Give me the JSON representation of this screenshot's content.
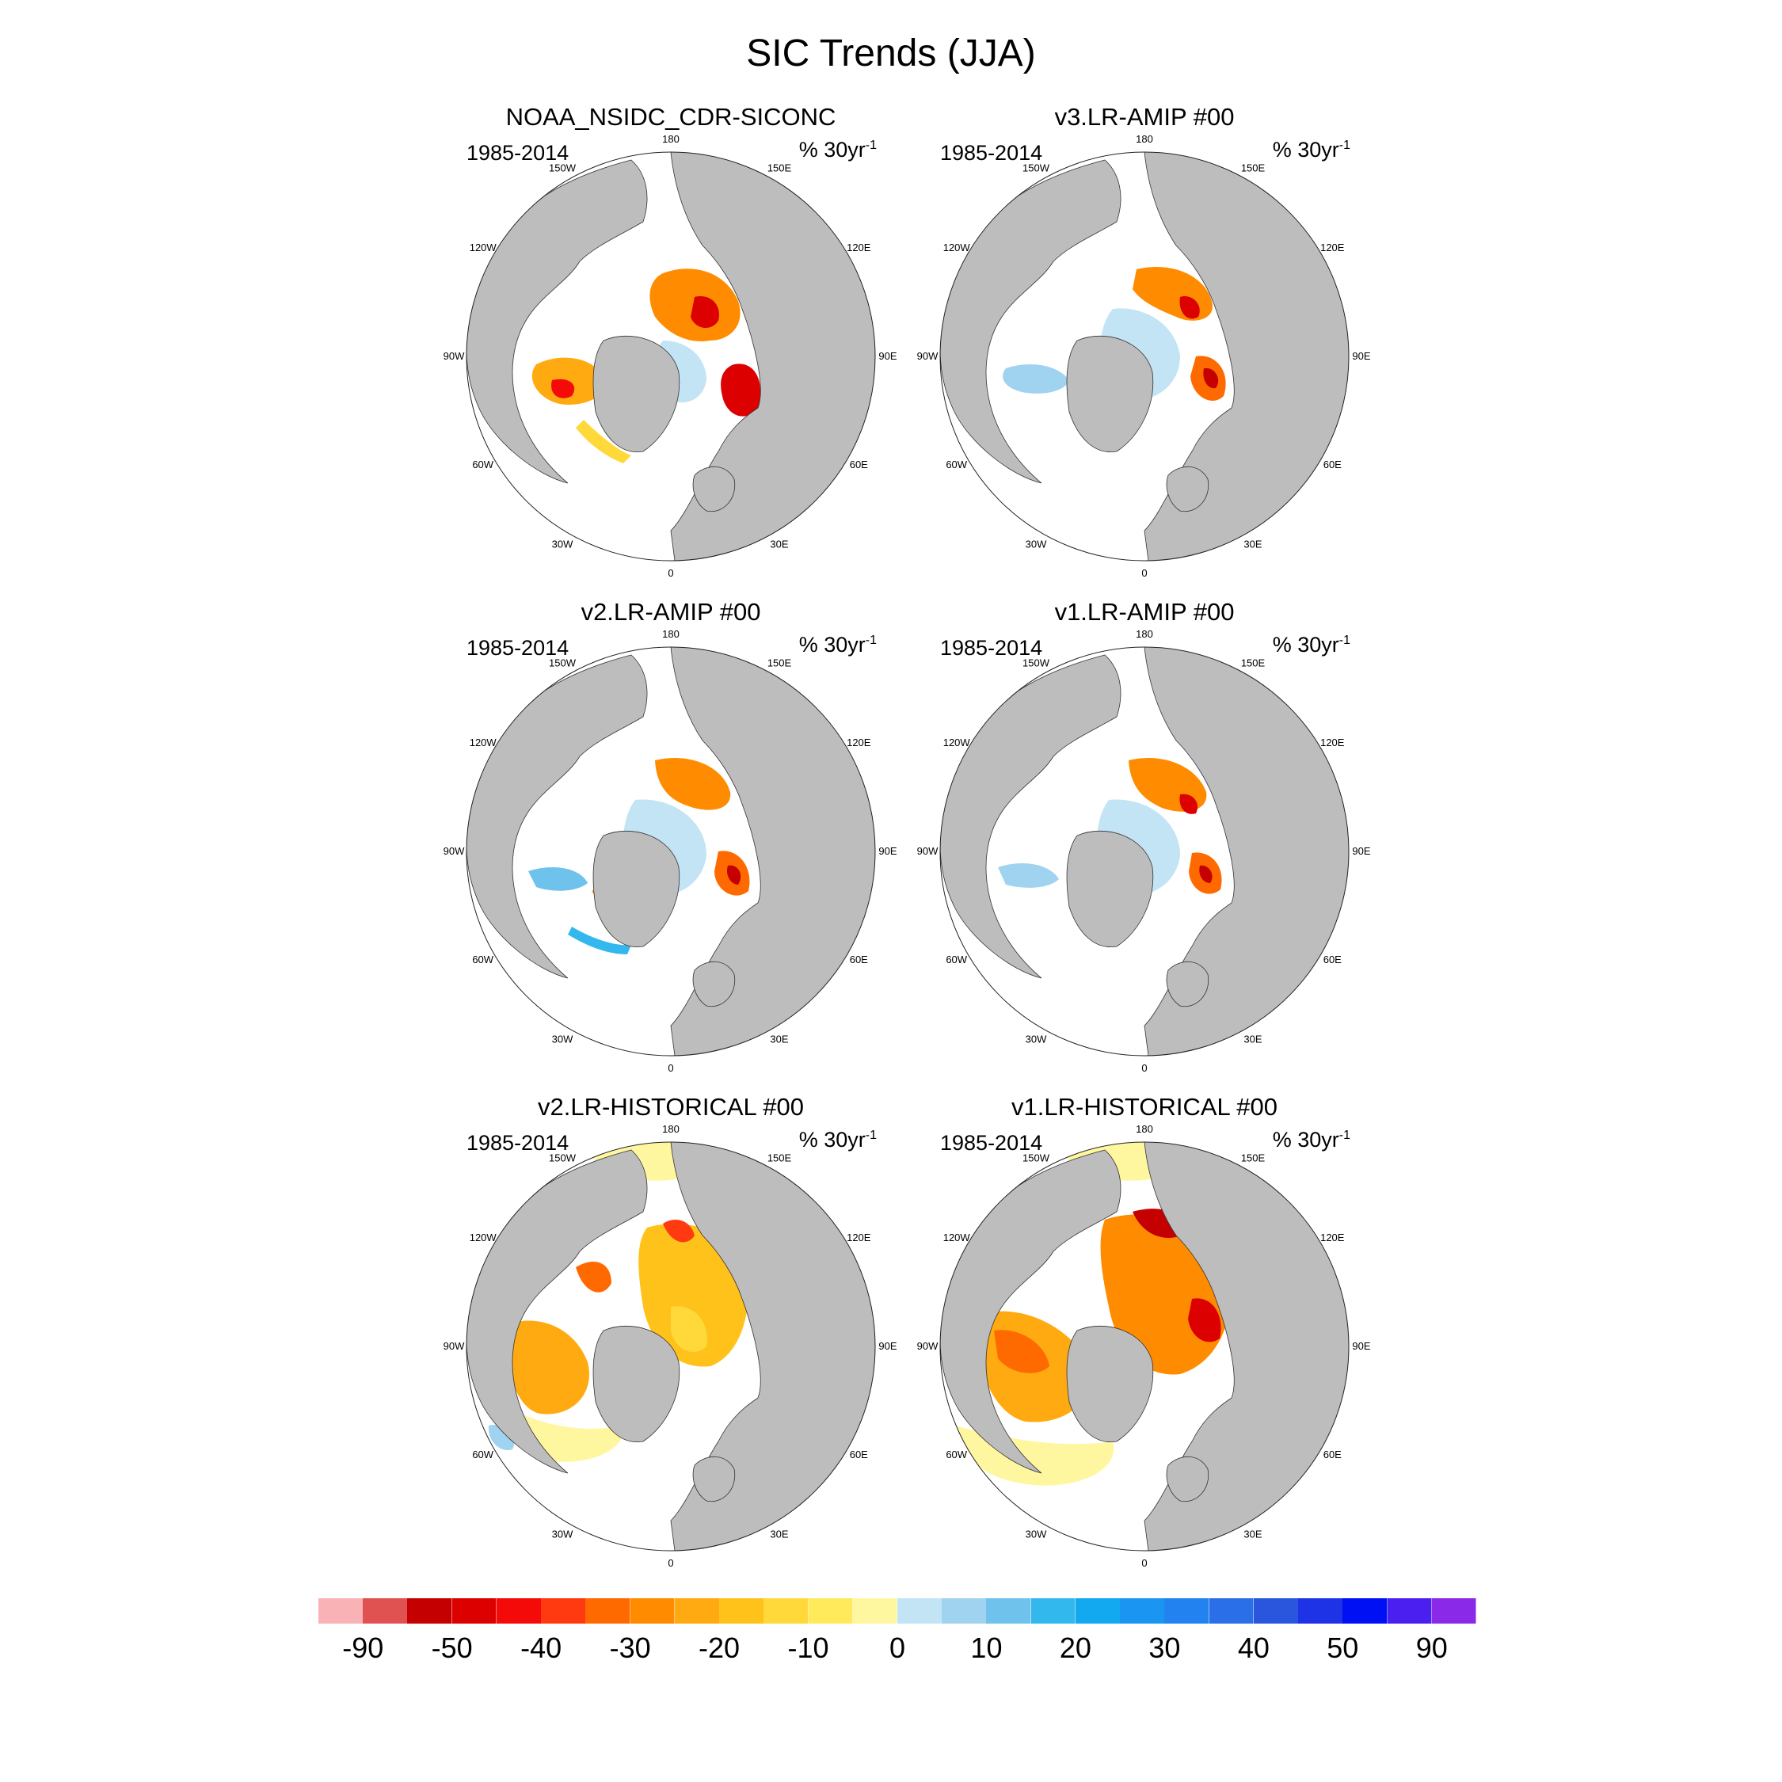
{
  "title": "SIC Trends (JJA)",
  "period": "1985-2014",
  "units_base": "% 30yr",
  "units_exp": "-1",
  "lon_labels": [
    "180",
    "150E",
    "120E",
    "90E",
    "60E",
    "30E",
    "0",
    "30W",
    "60W",
    "90W",
    "120W",
    "150W"
  ],
  "panels": [
    {
      "title": "NOAA_NSIDC_CDR-SICONC",
      "style": "obs"
    },
    {
      "title": "v3.LR-AMIP  #00",
      "style": "amip3"
    },
    {
      "title": "v2.LR-AMIP  #00",
      "style": "amip2"
    },
    {
      "title": "v1.LR-AMIP  #00",
      "style": "amip1"
    },
    {
      "title": "v2.LR-HISTORICAL  #00",
      "style": "hist2"
    },
    {
      "title": "v1.LR-HISTORICAL  #00",
      "style": "hist1"
    }
  ],
  "colorbar": {
    "labels": [
      "-90",
      "-50",
      "-40",
      "-30",
      "-20",
      "-10",
      "0",
      "10",
      "20",
      "30",
      "40",
      "50",
      "90"
    ],
    "colors": [
      "#f9b3b6",
      "#e05252",
      "#c40000",
      "#dc0000",
      "#f50a0a",
      "#ff3a10",
      "#ff6a00",
      "#ff8c00",
      "#ffaa10",
      "#ffc21a",
      "#ffd93a",
      "#ffea5c",
      "#fff7a0",
      "#c2e4f5",
      "#a0d3ef",
      "#6ec2ec",
      "#33b8ee",
      "#12a9f0",
      "#1a96f2",
      "#2283f0",
      "#2a6ee8",
      "#2a55dd",
      "#1f33e6",
      "#0010f5",
      "#4a1ff0",
      "#8a2ae8"
    ]
  }
}
